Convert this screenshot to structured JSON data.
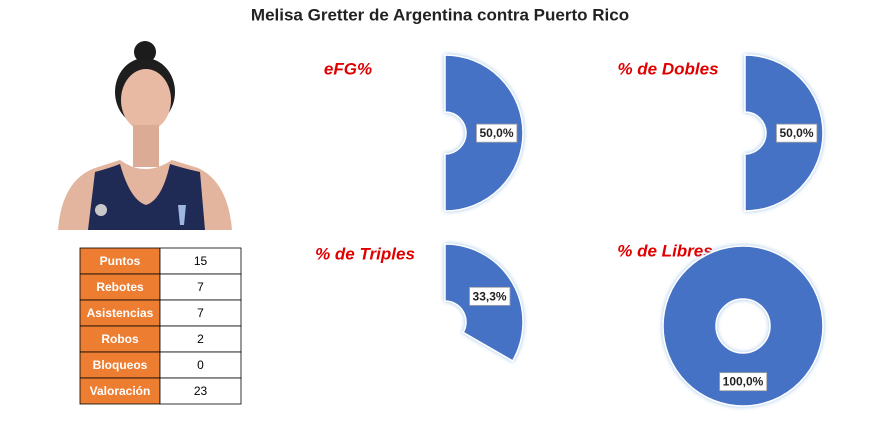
{
  "title": "Melisa Gretter de Argentina contra Puerto Rico",
  "table": {
    "rows": [
      [
        "Puntos",
        15
      ],
      [
        "Rebotes",
        7
      ],
      [
        "Asistencias",
        7
      ],
      [
        "Robos",
        2
      ],
      [
        "Bloqueos",
        0
      ],
      [
        "Valoración",
        23
      ]
    ]
  },
  "chart_data": [
    {
      "type": "donut",
      "title": "eFG%",
      "values": [
        50
      ],
      "value_labels": [
        "50,0%"
      ],
      "color": "#4472c4"
    },
    {
      "type": "donut",
      "title": "% de Dobles",
      "values": [
        50
      ],
      "value_labels": [
        "50,0%"
      ],
      "color": "#4472c4"
    },
    {
      "type": "donut",
      "title": "% de Triples",
      "values": [
        33.3
      ],
      "value_labels": [
        "33,3%"
      ],
      "color": "#4472c4"
    },
    {
      "type": "donut",
      "title": "% de Libres",
      "values": [
        100
      ],
      "value_labels": [
        "100,0%"
      ],
      "color": "#4472c4"
    }
  ]
}
